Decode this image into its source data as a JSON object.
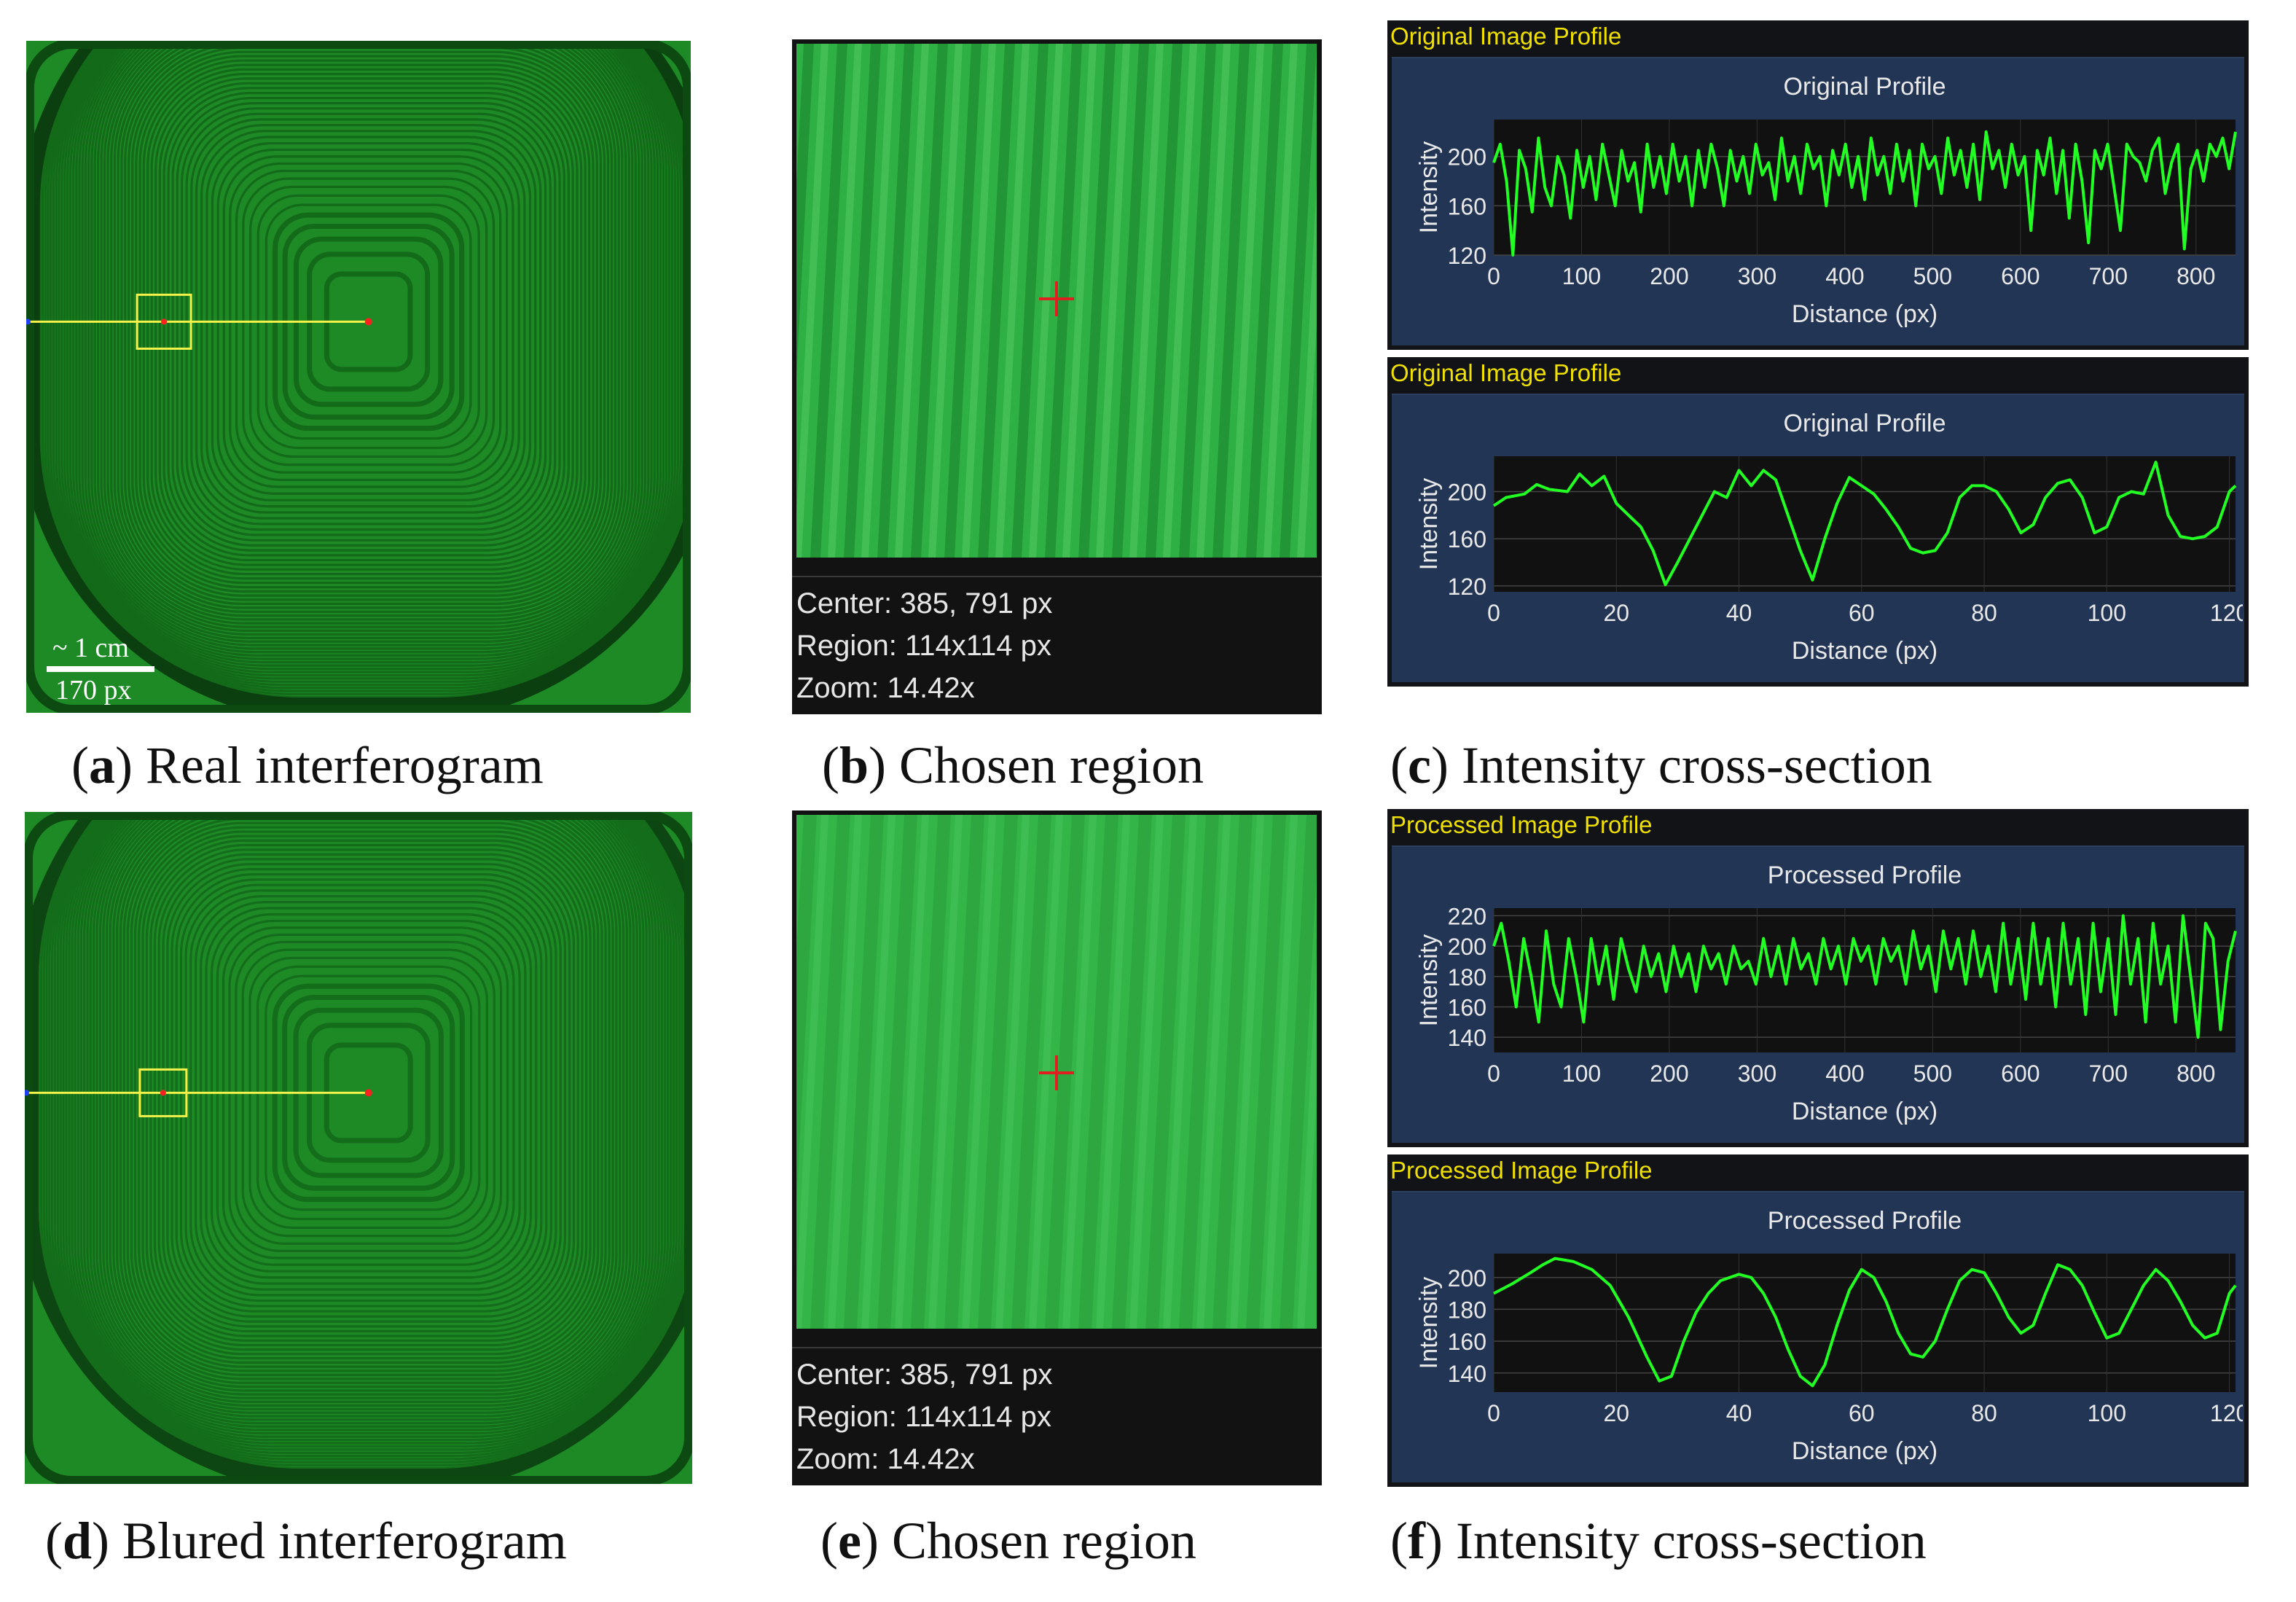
{
  "scale_bar": {
    "length_label": "~ 1 cm",
    "pixels_label": "170 px"
  },
  "zoom_info": {
    "center_label": "Center: 385, 791 px",
    "region_label": "Region: 114x114 px",
    "zoom_label": "Zoom: 14.42x"
  },
  "captions": {
    "a": {
      "letter": "a",
      "text": " Real interferogram"
    },
    "b": {
      "letter": "b",
      "text": " Chosen region"
    },
    "c": {
      "letter": "c",
      "text": " Intensity cross-section"
    },
    "d": {
      "letter": "d",
      "text": " Blured interferogram"
    },
    "e": {
      "letter": "e",
      "text": " Chosen region"
    },
    "f": {
      "letter": "f",
      "text": " Intensity cross-section"
    }
  },
  "colors": {
    "plot_bg": "#223554",
    "trace": "#22ff22",
    "title_yellow": "#f0e000",
    "interferogram_green": "#1b7f22"
  },
  "chart_data": [
    {
      "id": "c1",
      "type": "line",
      "window_title": "Original Image Profile",
      "title": "Original Profile",
      "xlabel": "Distance (px)",
      "ylabel": "Intensity",
      "xlim": [
        0,
        845
      ],
      "ylim": [
        120,
        230
      ],
      "xticks": [
        0,
        100,
        200,
        300,
        400,
        500,
        600,
        700,
        800
      ],
      "yticks": [
        120,
        160,
        200
      ],
      "y": [
        195,
        210,
        180,
        120,
        205,
        190,
        155,
        215,
        175,
        160,
        200,
        185,
        150,
        205,
        175,
        200,
        165,
        210,
        185,
        160,
        205,
        180,
        195,
        155,
        210,
        175,
        200,
        170,
        210,
        180,
        200,
        160,
        205,
        175,
        210,
        190,
        160,
        205,
        180,
        200,
        170,
        210,
        185,
        195,
        165,
        215,
        180,
        200,
        170,
        210,
        190,
        200,
        160,
        205,
        185,
        210,
        175,
        200,
        165,
        215,
        185,
        200,
        170,
        210,
        180,
        205,
        160,
        210,
        190,
        200,
        170,
        215,
        185,
        205,
        175,
        210,
        165,
        220,
        190,
        205,
        175,
        210,
        185,
        200,
        140,
        205,
        185,
        215,
        170,
        205,
        150,
        210,
        180,
        130,
        205,
        190,
        210,
        175,
        140,
        210,
        200,
        195,
        180,
        205,
        215,
        170,
        195,
        210,
        125,
        190,
        205,
        180,
        210,
        200,
        215,
        190,
        220
      ]
    },
    {
      "id": "c2",
      "type": "line",
      "window_title": "Original Image Profile",
      "title": "Original Profile",
      "xlabel": "Distance (px)",
      "ylabel": "Intensity",
      "xlim": [
        0,
        121
      ],
      "ylim": [
        115,
        230
      ],
      "xticks": [
        0,
        20,
        40,
        60,
        80,
        100,
        120
      ],
      "yticks": [
        120,
        160,
        200
      ],
      "points": [
        [
          0,
          188
        ],
        [
          2,
          195
        ],
        [
          5,
          198
        ],
        [
          7,
          206
        ],
        [
          9,
          202
        ],
        [
          12,
          200
        ],
        [
          14,
          215
        ],
        [
          16,
          205
        ],
        [
          18,
          213
        ],
        [
          20,
          190
        ],
        [
          22,
          180
        ],
        [
          24,
          170
        ],
        [
          26,
          150
        ],
        [
          28,
          121
        ],
        [
          30,
          140
        ],
        [
          32,
          160
        ],
        [
          34,
          180
        ],
        [
          36,
          200
        ],
        [
          38,
          195
        ],
        [
          40,
          218
        ],
        [
          42,
          205
        ],
        [
          44,
          218
        ],
        [
          46,
          210
        ],
        [
          48,
          180
        ],
        [
          50,
          150
        ],
        [
          52,
          125
        ],
        [
          54,
          160
        ],
        [
          56,
          190
        ],
        [
          58,
          212
        ],
        [
          60,
          205
        ],
        [
          62,
          198
        ],
        [
          64,
          185
        ],
        [
          66,
          170
        ],
        [
          68,
          152
        ],
        [
          70,
          148
        ],
        [
          72,
          150
        ],
        [
          74,
          165
        ],
        [
          76,
          195
        ],
        [
          78,
          205
        ],
        [
          80,
          205
        ],
        [
          82,
          200
        ],
        [
          84,
          185
        ],
        [
          86,
          165
        ],
        [
          88,
          172
        ],
        [
          90,
          195
        ],
        [
          92,
          207
        ],
        [
          94,
          210
        ],
        [
          96,
          195
        ],
        [
          98,
          165
        ],
        [
          100,
          170
        ],
        [
          102,
          195
        ],
        [
          104,
          200
        ],
        [
          106,
          198
        ],
        [
          108,
          225
        ],
        [
          110,
          180
        ],
        [
          112,
          162
        ],
        [
          114,
          160
        ],
        [
          116,
          162
        ],
        [
          118,
          170
        ],
        [
          120,
          200
        ],
        [
          121,
          205
        ]
      ]
    },
    {
      "id": "f1",
      "type": "line",
      "window_title": "Processed Image Profile",
      "title": "Processed Profile",
      "xlabel": "Distance (px)",
      "ylabel": "Intensity",
      "xlim": [
        0,
        845
      ],
      "ylim": [
        130,
        225
      ],
      "xticks": [
        0,
        100,
        200,
        300,
        400,
        500,
        600,
        700,
        800
      ],
      "yticks": [
        140,
        160,
        180,
        200,
        220
      ],
      "y": [
        200,
        215,
        190,
        160,
        205,
        180,
        150,
        210,
        175,
        160,
        205,
        180,
        150,
        205,
        175,
        200,
        165,
        205,
        185,
        170,
        200,
        180,
        195,
        170,
        200,
        180,
        195,
        170,
        200,
        185,
        195,
        175,
        200,
        185,
        190,
        175,
        205,
        180,
        200,
        175,
        205,
        185,
        195,
        175,
        205,
        185,
        200,
        175,
        205,
        190,
        200,
        175,
        205,
        190,
        200,
        175,
        210,
        185,
        200,
        170,
        210,
        185,
        205,
        175,
        210,
        180,
        200,
        170,
        215,
        175,
        205,
        165,
        215,
        175,
        205,
        160,
        215,
        175,
        205,
        155,
        215,
        170,
        205,
        155,
        220,
        175,
        205,
        150,
        215,
        175,
        200,
        150,
        220,
        180,
        140,
        215,
        205,
        145,
        190,
        210
      ]
    },
    {
      "id": "f2",
      "type": "line",
      "window_title": "Processed Image Profile",
      "title": "Processed Profile",
      "xlabel": "Distance (px)",
      "ylabel": "Intensity",
      "xlim": [
        0,
        121
      ],
      "ylim": [
        128,
        215
      ],
      "xticks": [
        0,
        20,
        40,
        60,
        80,
        100,
        120
      ],
      "yticks": [
        140,
        160,
        180,
        200
      ],
      "points": [
        [
          0,
          190
        ],
        [
          3,
          196
        ],
        [
          6,
          203
        ],
        [
          8,
          208
        ],
        [
          10,
          212
        ],
        [
          13,
          210
        ],
        [
          16,
          205
        ],
        [
          19,
          195
        ],
        [
          22,
          175
        ],
        [
          25,
          150
        ],
        [
          27,
          135
        ],
        [
          29,
          138
        ],
        [
          31,
          160
        ],
        [
          33,
          178
        ],
        [
          35,
          190
        ],
        [
          37,
          198
        ],
        [
          40,
          202
        ],
        [
          42,
          200
        ],
        [
          44,
          190
        ],
        [
          46,
          175
        ],
        [
          48,
          155
        ],
        [
          50,
          138
        ],
        [
          52,
          132
        ],
        [
          54,
          145
        ],
        [
          56,
          170
        ],
        [
          58,
          192
        ],
        [
          60,
          205
        ],
        [
          62,
          200
        ],
        [
          64,
          185
        ],
        [
          66,
          165
        ],
        [
          68,
          152
        ],
        [
          70,
          150
        ],
        [
          72,
          160
        ],
        [
          74,
          180
        ],
        [
          76,
          198
        ],
        [
          78,
          205
        ],
        [
          80,
          203
        ],
        [
          82,
          190
        ],
        [
          84,
          175
        ],
        [
          86,
          165
        ],
        [
          88,
          170
        ],
        [
          90,
          190
        ],
        [
          92,
          208
        ],
        [
          94,
          205
        ],
        [
          96,
          195
        ],
        [
          98,
          178
        ],
        [
          100,
          162
        ],
        [
          102,
          165
        ],
        [
          104,
          180
        ],
        [
          106,
          195
        ],
        [
          108,
          205
        ],
        [
          110,
          198
        ],
        [
          112,
          185
        ],
        [
          114,
          170
        ],
        [
          116,
          162
        ],
        [
          118,
          165
        ],
        [
          120,
          190
        ],
        [
          121,
          195
        ]
      ]
    }
  ]
}
